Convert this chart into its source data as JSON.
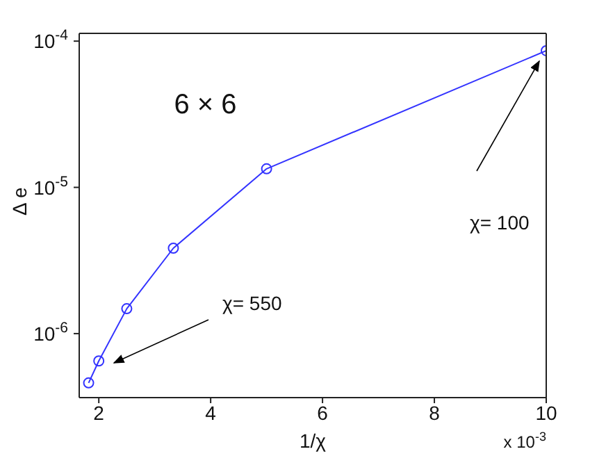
{
  "chart_data": {
    "type": "line",
    "xlabel": "1/χ",
    "ylabel": "Δ e",
    "x": [
      1.818,
      2,
      2.5,
      3.333,
      5,
      10
    ],
    "series": [
      {
        "color": "#3333ff",
        "values": [
          4.6e-07,
          6.5e-07,
          1.48e-06,
          3.84e-06,
          1.34e-05,
          8.6e-05
        ]
      }
    ],
    "xlim": [
      1.65,
      10
    ],
    "xticks": [
      2,
      4,
      6,
      8,
      10
    ],
    "ylim": [
      3.65e-07,
      0.000113
    ],
    "yticks": [
      {
        "value": 1e-06,
        "label": "10$^{-6}$"
      },
      {
        "value": 1e-05,
        "label": "10$^{-5}$"
      },
      {
        "value": 0.0001,
        "label": "10$^{-4}$"
      }
    ],
    "log": "y",
    "marker": "circle",
    "line_style": "solid",
    "annotations": [
      "6 × 6",
      "x 10$^{-3}$",
      "χ= 550",
      "χ= 100"
    ]
  }
}
